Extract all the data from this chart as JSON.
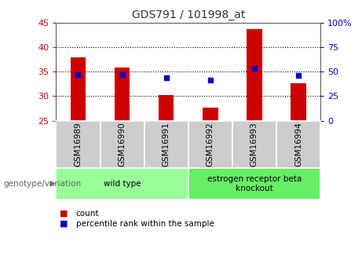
{
  "title": "GDS791 / 101998_at",
  "categories": [
    "GSM16989",
    "GSM16990",
    "GSM16991",
    "GSM16992",
    "GSM16993",
    "GSM16994"
  ],
  "bar_values": [
    38.0,
    35.8,
    30.3,
    27.7,
    43.7,
    32.6
  ],
  "bar_bottom": 25,
  "percentile_values": [
    34.5,
    34.5,
    33.8,
    33.3,
    35.7,
    34.2
  ],
  "ylim": [
    25,
    45
  ],
  "yticks_left": [
    25,
    30,
    35,
    40,
    45
  ],
  "yticks_right": [
    0,
    25,
    50,
    75,
    100
  ],
  "bar_color": "#cc0000",
  "dot_color": "#0000cc",
  "title_color": "#333333",
  "left_tick_color": "#cc0000",
  "right_tick_color": "#0000cc",
  "group_labels": [
    "wild type",
    "estrogen receptor beta\nknockout"
  ],
  "group_colors": [
    "#99ff99",
    "#66ee66"
  ],
  "genotype_label": "genotype/variation",
  "legend_entries": [
    "count",
    "percentile rank within the sample"
  ],
  "legend_colors": [
    "#cc0000",
    "#0000cc"
  ],
  "cat_box_color": "#cccccc",
  "plot_bg": "#ffffff"
}
